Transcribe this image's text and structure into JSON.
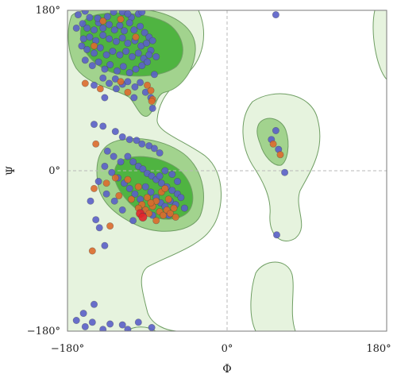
{
  "chart_data": {
    "type": "scatter",
    "xlabel": "Φ",
    "ylabel": "Ψ",
    "xlim": [
      -180,
      180
    ],
    "ylim": [
      -180,
      180
    ],
    "xticks": [
      -180,
      0,
      180
    ],
    "yticks": [
      -180,
      0,
      180
    ],
    "xtick_labels": [
      "−180°",
      "0°",
      "180°"
    ],
    "ytick_labels": [
      "−180°",
      "0°",
      "180°"
    ],
    "reference_lines": {
      "x": 0,
      "y": 0,
      "style": "dashed"
    },
    "colors": {
      "allowed_region": "#e6f3de",
      "favored_region": "#a2d38e",
      "core_region": "#4fb441",
      "contour": "#6f9e63",
      "points_blue": "#5a5fc8",
      "points_orange": "#dc6a2c",
      "points_red": "#e2242a"
    },
    "series": [
      {
        "values": [
          [
            -160,
            179
          ],
          [
            -168,
            175
          ],
          [
            -155,
            172
          ],
          [
            -135,
            173
          ],
          [
            -118,
            178
          ],
          [
            -100,
            176
          ],
          [
            -108,
            172
          ],
          [
            -170,
            160
          ],
          [
            -163,
            165
          ],
          [
            -158,
            160
          ],
          [
            -150,
            158
          ],
          [
            -145,
            166
          ],
          [
            -140,
            160
          ],
          [
            -133,
            164
          ],
          [
            -127,
            158
          ],
          [
            -121,
            163
          ],
          [
            -116,
            157
          ],
          [
            -110,
            166
          ],
          [
            -105,
            158
          ],
          [
            -98,
            162
          ],
          [
            -93,
            155
          ],
          [
            -88,
            150
          ],
          [
            -84,
            146
          ],
          [
            -162,
            148
          ],
          [
            -155,
            150
          ],
          [
            -148,
            146
          ],
          [
            -140,
            152
          ],
          [
            -133,
            148
          ],
          [
            -125,
            145
          ],
          [
            -118,
            149
          ],
          [
            -112,
            143
          ],
          [
            -104,
            146
          ],
          [
            -97,
            140
          ],
          [
            -91,
            143
          ],
          [
            -86,
            135
          ],
          [
            -80,
            128
          ],
          [
            -158,
            136
          ],
          [
            -150,
            132
          ],
          [
            -143,
            138
          ],
          [
            -136,
            130
          ],
          [
            -129,
            134
          ],
          [
            -121,
            130
          ],
          [
            -114,
            134
          ],
          [
            -107,
            128
          ],
          [
            -100,
            132
          ],
          [
            -94,
            126
          ],
          [
            -88,
            130
          ],
          [
            -160,
            124
          ],
          [
            -152,
            118
          ],
          [
            -145,
            122
          ],
          [
            -138,
            114
          ],
          [
            -132,
            119
          ],
          [
            -124,
            112
          ],
          [
            -117,
            117
          ],
          [
            -110,
            110
          ],
          [
            -103,
            114
          ],
          [
            -96,
            118
          ],
          [
            -90,
            122
          ],
          [
            -140,
            104
          ],
          [
            -133,
            98
          ],
          [
            -126,
            103
          ],
          [
            -118,
            97
          ],
          [
            -112,
            100
          ],
          [
            -104,
            94
          ],
          [
            -98,
            99
          ],
          [
            -92,
            88
          ],
          [
            -86,
            82
          ],
          [
            -84,
            70
          ],
          [
            -164,
            140
          ],
          [
            -146,
            171
          ],
          [
            -128,
            178
          ],
          [
            -112,
            176
          ],
          [
            -96,
            178
          ],
          [
            -150,
            96
          ],
          [
            -138,
            82
          ],
          [
            -125,
            92
          ],
          [
            -105,
            82
          ],
          [
            -82,
            108
          ],
          [
            -150,
            52
          ],
          [
            -140,
            50
          ],
          [
            -126,
            44
          ],
          [
            -118,
            38
          ],
          [
            -110,
            35
          ],
          [
            -102,
            34
          ],
          [
            -96,
            30
          ],
          [
            -88,
            28
          ],
          [
            -82,
            25
          ],
          [
            -76,
            20
          ],
          [
            -135,
            22
          ],
          [
            -128,
            16
          ],
          [
            -120,
            10
          ],
          [
            -112,
            16
          ],
          [
            -106,
            10
          ],
          [
            -100,
            5
          ],
          [
            -95,
            2
          ],
          [
            -90,
            -3
          ],
          [
            -85,
            -6
          ],
          [
            -80,
            -10
          ],
          [
            -74,
            -14
          ],
          [
            -68,
            -18
          ],
          [
            -62,
            -22
          ],
          [
            -56,
            -26
          ],
          [
            -138,
            5
          ],
          [
            -130,
            -2
          ],
          [
            -123,
            -8
          ],
          [
            -116,
            -14
          ],
          [
            -110,
            -20
          ],
          [
            -104,
            -26
          ],
          [
            -98,
            -32
          ],
          [
            -92,
            -18
          ],
          [
            -86,
            -24
          ],
          [
            -80,
            -30
          ],
          [
            -75,
            -36
          ],
          [
            -70,
            -40
          ],
          [
            -64,
            -34
          ],
          [
            -58,
            -38
          ],
          [
            -52,
            -30
          ],
          [
            -48,
            -42
          ],
          [
            -145,
            -12
          ],
          [
            -136,
            -26
          ],
          [
            -127,
            -34
          ],
          [
            -118,
            -44
          ],
          [
            -106,
            -56
          ],
          [
            -94,
            -46
          ],
          [
            -84,
            -50
          ],
          [
            -76,
            -6
          ],
          [
            -70,
            0
          ],
          [
            -62,
            -4
          ],
          [
            -56,
            -12
          ],
          [
            -66,
            -50
          ],
          [
            -154,
            -34
          ],
          [
            -148,
            -55
          ],
          [
            -144,
            -64
          ],
          [
            -138,
            -84
          ],
          [
            -152,
            -170
          ],
          [
            -160,
            -175
          ],
          [
            -140,
            -178
          ],
          [
            -112,
            -178
          ],
          [
            -162,
            -160
          ],
          [
            -150,
            -150
          ],
          [
            -132,
            -172
          ],
          [
            -100,
            -170
          ],
          [
            -118,
            -173
          ],
          [
            -85,
            -176
          ],
          [
            -170,
            -168
          ],
          [
            55,
            45
          ],
          [
            50,
            35
          ],
          [
            58,
            24
          ],
          [
            65,
            -2
          ],
          [
            56,
            -72
          ],
          [
            55,
            175
          ]
        ]
      },
      {
        "values": [
          [
            -140,
            168
          ],
          [
            -120,
            170
          ],
          [
            -150,
            140
          ],
          [
            -103,
            150
          ],
          [
            -160,
            98
          ],
          [
            -143,
            92
          ],
          [
            -120,
            100
          ],
          [
            -112,
            88
          ],
          [
            -86,
            90
          ],
          [
            -84,
            80
          ],
          [
            -85,
            78
          ],
          [
            -90,
            96
          ],
          [
            -136,
            -14
          ],
          [
            -122,
            -28
          ],
          [
            -112,
            -10
          ],
          [
            -100,
            -18
          ],
          [
            -96,
            -38
          ],
          [
            -92,
            -44
          ],
          [
            -88,
            -48
          ],
          [
            -84,
            -40
          ],
          [
            -80,
            -34
          ],
          [
            -76,
            -46
          ],
          [
            -72,
            -50
          ],
          [
            -68,
            -44
          ],
          [
            -64,
            -48
          ],
          [
            -60,
            -42
          ],
          [
            -58,
            -52
          ],
          [
            -66,
            -32
          ],
          [
            -90,
            -30
          ],
          [
            -86,
            -36
          ],
          [
            -74,
            -24
          ],
          [
            -70,
            -20
          ],
          [
            -108,
            -32
          ],
          [
            -100,
            -42
          ],
          [
            -80,
            -56
          ],
          [
            -150,
            -20
          ],
          [
            -126,
            -8
          ],
          [
            -148,
            30
          ],
          [
            -132,
            -62
          ],
          [
            -152,
            -90
          ],
          [
            52,
            30
          ],
          [
            60,
            18
          ]
        ]
      },
      {
        "values": [
          [
            -98,
            -48
          ],
          [
            -95,
            -52
          ]
        ]
      }
    ]
  }
}
